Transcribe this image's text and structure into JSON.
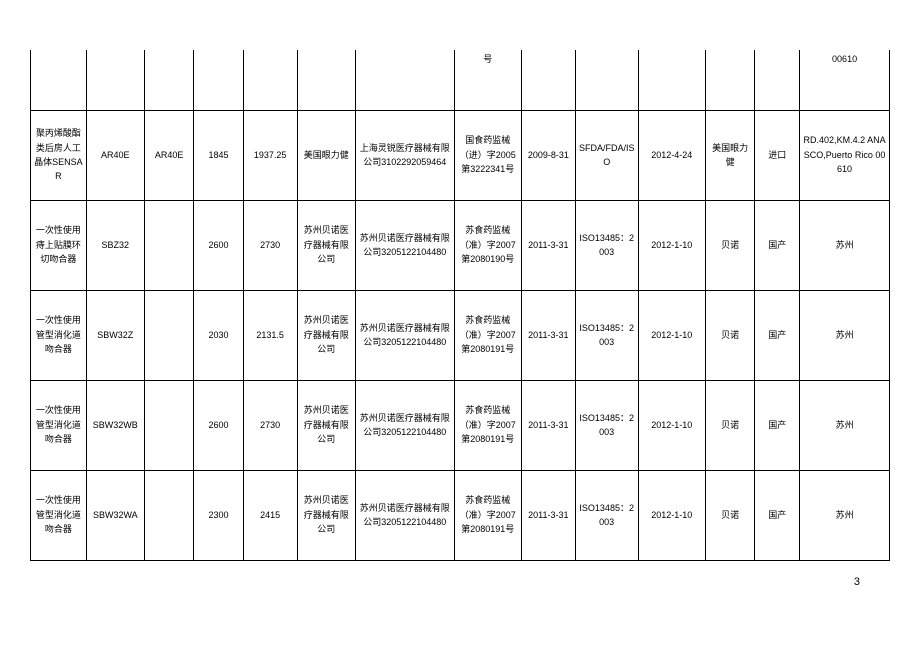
{
  "page_number": "3",
  "partial_row": {
    "c0": "",
    "c1": "",
    "c2": "",
    "c3": "",
    "c4": "",
    "c5": "",
    "c6": "",
    "c7": "号",
    "c8": "",
    "c9": "",
    "c10": "",
    "c11": "",
    "c12": "",
    "c13": "00610"
  },
  "rows": [
    {
      "c0": "聚丙烯酸酯类后房人工晶体SENSAR",
      "c1": "AR40E",
      "c2": "AR40E",
      "c3": "1845",
      "c4": "1937.25",
      "c5": "美国眼力健",
      "c6": "上海灵锐医疗器械有限公司3102292059464",
      "c7": "国食药监械（进）字2005 第3222341号",
      "c8": "2009-8-31",
      "c9": "SFDA/FDA/ISO",
      "c10": "2012-4-24",
      "c11": "美国眼力健",
      "c12": "进口",
      "c13": "RD.402,KM.4.2 ANASCO,Puerto Rico 00610"
    },
    {
      "c0": "一次性使用痔上贴膜环切吻合器",
      "c1": "SBZ32",
      "c2": "",
      "c3": "2600",
      "c4": "2730",
      "c5": "苏州贝诺医疗器械有限公司",
      "c6": "苏州贝诺医疗器械有限公司3205122104480",
      "c7": "苏食药监械（准）字2007 第2080190号",
      "c8": "2011-3-31",
      "c9": "ISO13485：2003",
      "c10": "2012-1-10",
      "c11": "贝诺",
      "c12": "国产",
      "c13": "苏州"
    },
    {
      "c0": "一次性使用管型消化道吻合器",
      "c1": "SBW32Z",
      "c2": "",
      "c3": "2030",
      "c4": "2131.5",
      "c5": "苏州贝诺医疗器械有限公司",
      "c6": "苏州贝诺医疗器械有限公司3205122104480",
      "c7": "苏食药监械（准）字2007 第2080191号",
      "c8": "2011-3-31",
      "c9": "ISO13485：2003",
      "c10": "2012-1-10",
      "c11": "贝诺",
      "c12": "国产",
      "c13": "苏州"
    },
    {
      "c0": "一次性使用管型消化道吻合器",
      "c1": "SBW32WB",
      "c2": "",
      "c3": "2600",
      "c4": "2730",
      "c5": "苏州贝诺医疗器械有限公司",
      "c6": "苏州贝诺医疗器械有限公司3205122104480",
      "c7": "苏食药监械（准）字2007 第2080191号",
      "c8": "2011-3-31",
      "c9": "ISO13485：2003",
      "c10": "2012-1-10",
      "c11": "贝诺",
      "c12": "国产",
      "c13": "苏州"
    },
    {
      "c0": "一次性使用管型消化道吻合器",
      "c1": "SBW32WA",
      "c2": "",
      "c3": "2300",
      "c4": "2415",
      "c5": "苏州贝诺医疗器械有限公司",
      "c6": "苏州贝诺医疗器械有限公司3205122104480",
      "c7": "苏食药监械（准）字2007 第2080191号",
      "c8": "2011-3-31",
      "c9": "ISO13485：2003",
      "c10": "2012-1-10",
      "c11": "贝诺",
      "c12": "国产",
      "c13": "苏州"
    }
  ]
}
